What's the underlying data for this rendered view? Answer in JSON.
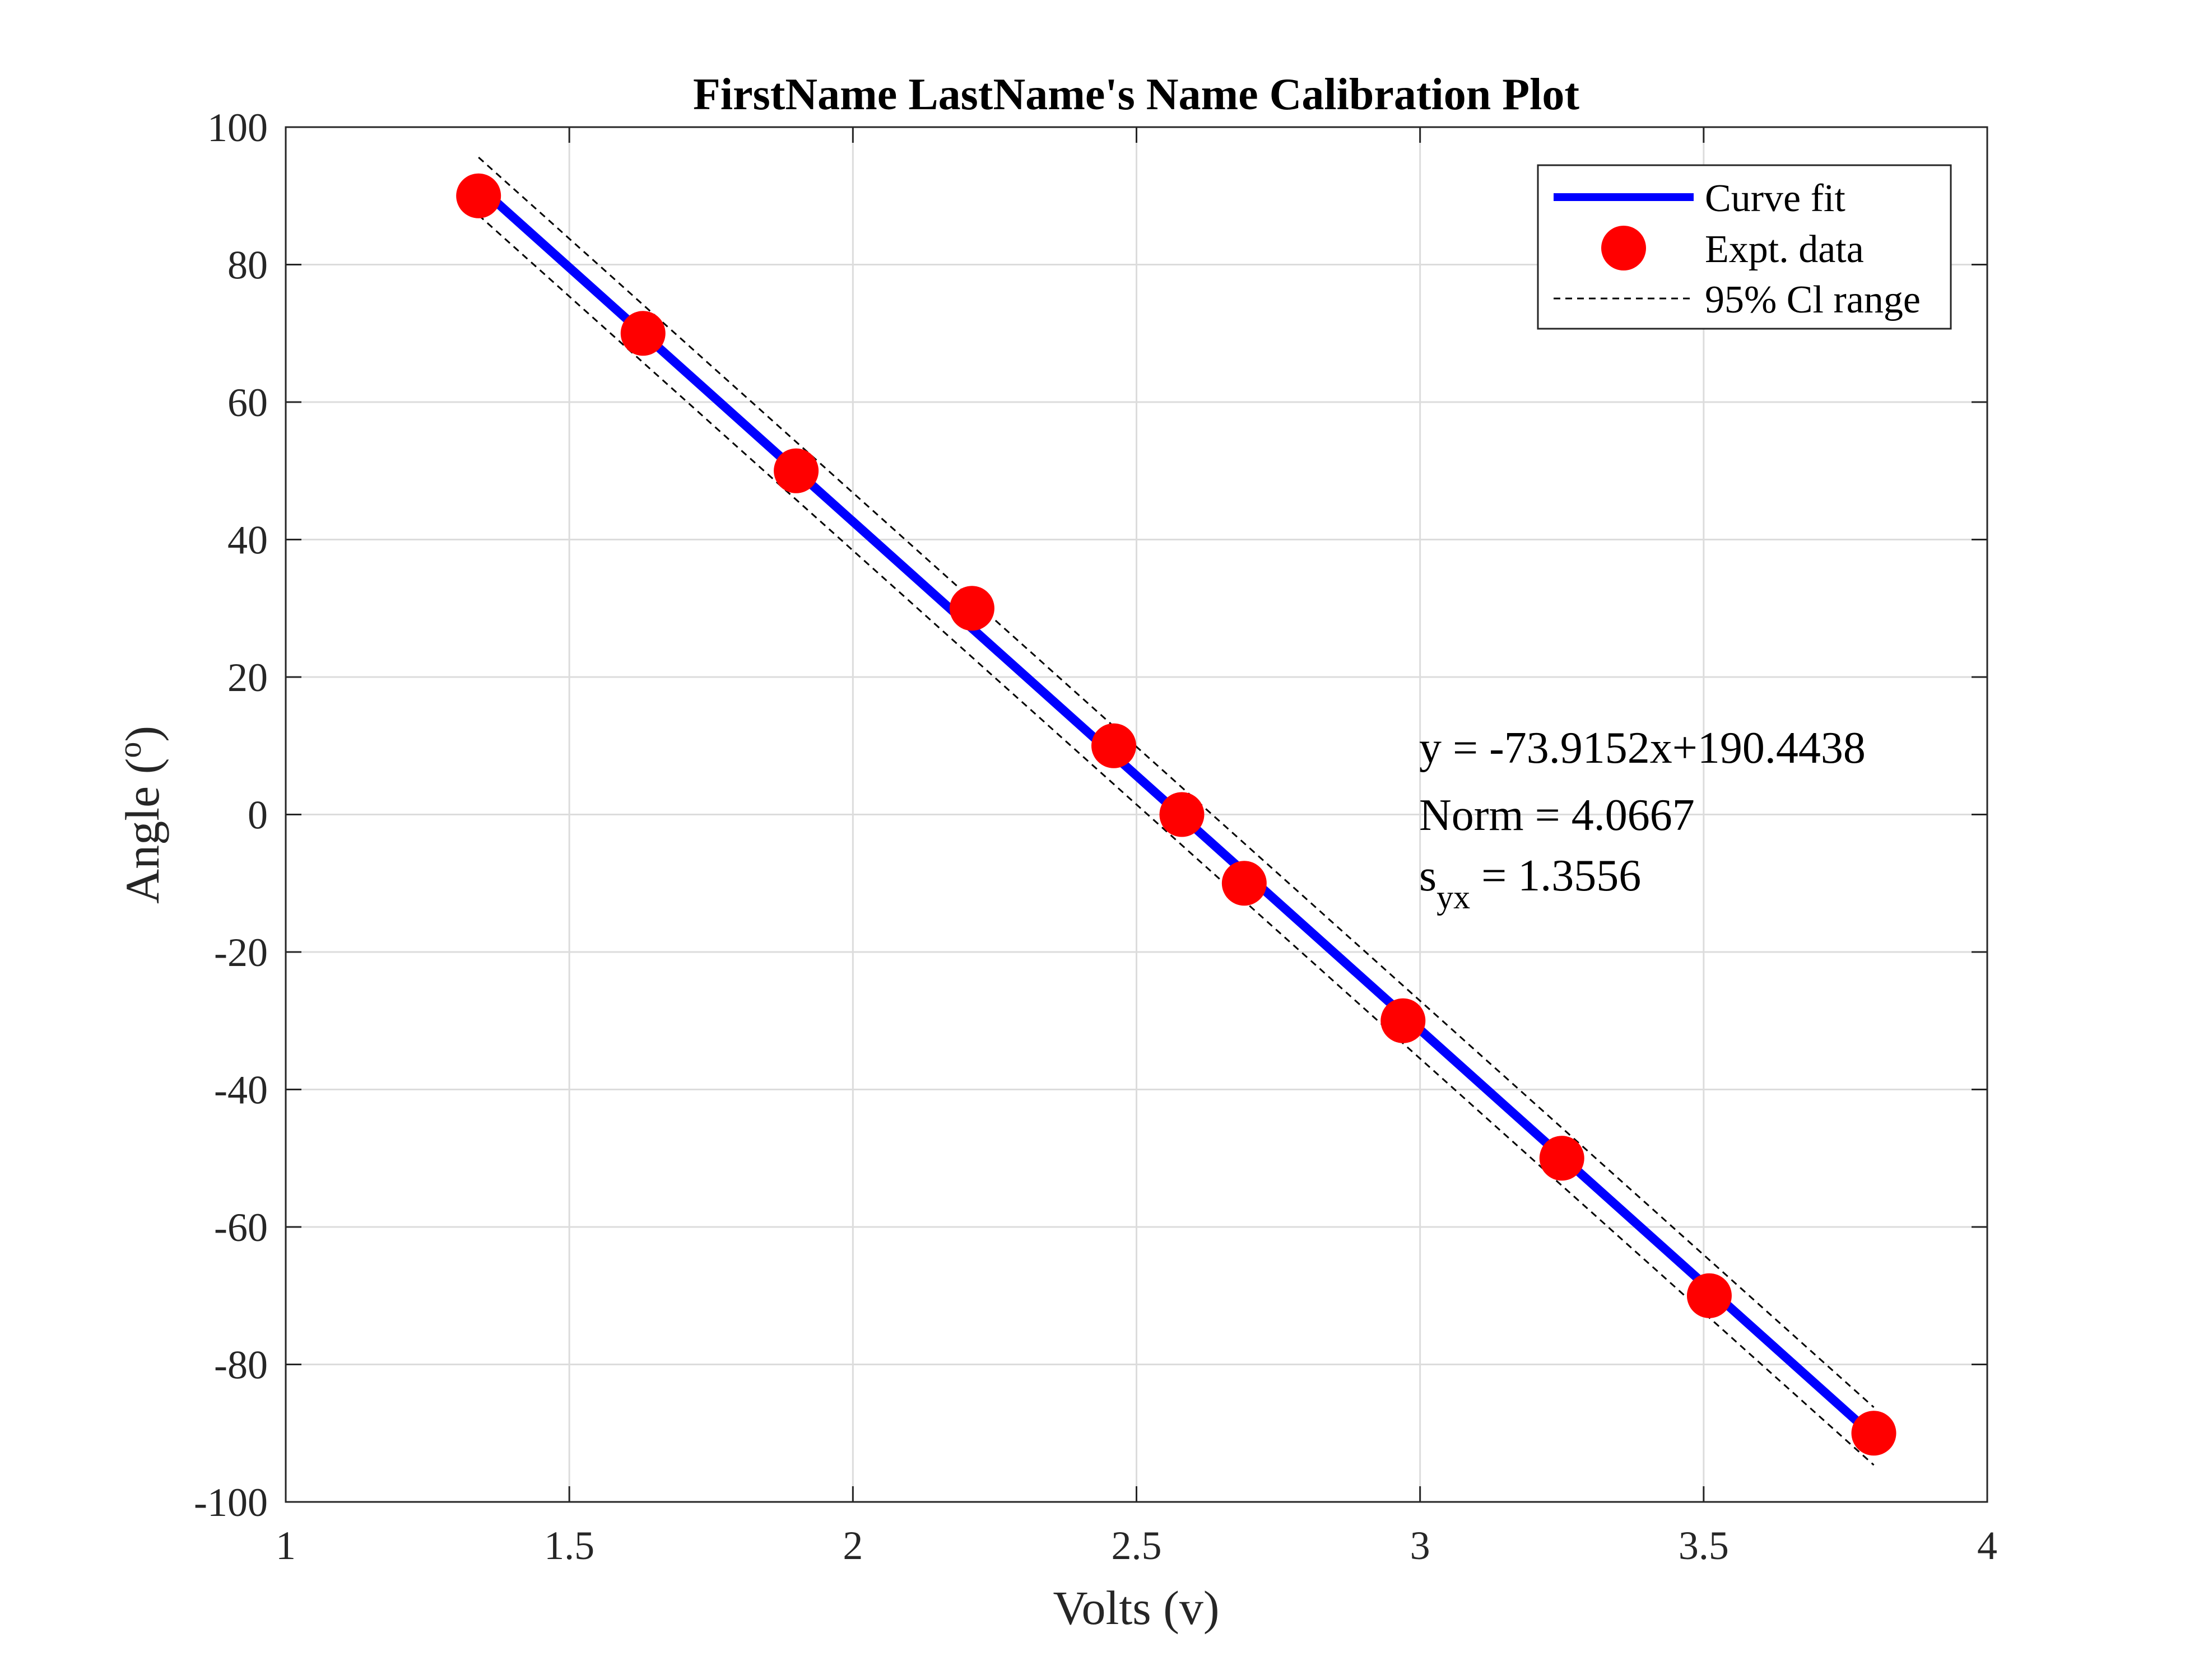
{
  "chart_data": {
    "type": "scatter",
    "title": "FirstName LastName's Name Calibration Plot",
    "xlabel": "Volts (v)",
    "ylabel_main": "Angle (",
    "ylabel_sup": "o",
    "ylabel_close": ")",
    "xlim": [
      1,
      4
    ],
    "ylim": [
      -100,
      100
    ],
    "x_ticks": [
      1,
      1.5,
      2,
      2.5,
      3,
      3.5,
      4
    ],
    "x_tick_labels": [
      "1",
      "1.5",
      "2",
      "2.5",
      "3",
      "3.5",
      "4"
    ],
    "y_ticks": [
      -100,
      -80,
      -60,
      -40,
      -20,
      0,
      20,
      40,
      60,
      80,
      100
    ],
    "y_tick_labels": [
      "-100",
      "-80",
      "-60",
      "-40",
      "-20",
      "0",
      "20",
      "40",
      "60",
      "80",
      "100"
    ],
    "grid": true,
    "legend_position": "top-right",
    "series": [
      {
        "name": "Expt. data",
        "kind": "markers",
        "color": "#ff0000",
        "x": [
          1.34,
          1.63,
          1.9,
          2.21,
          2.46,
          2.58,
          2.69,
          2.97,
          3.25,
          3.51,
          3.8
        ],
        "y": [
          90,
          70,
          50,
          30,
          10,
          0,
          -10,
          -30,
          -50,
          -70,
          -90
        ]
      },
      {
        "name": "Curve fit",
        "kind": "line",
        "color": "#0000ff",
        "slope": -73.9152,
        "intercept": 190.4438,
        "x_range": [
          1.34,
          3.8
        ]
      },
      {
        "name": "95% Cl range",
        "kind": "dashed-band",
        "color": "#000000",
        "half_width": 4.2
      }
    ],
    "legend_entries": [
      "Curve fit",
      "Expt. data",
      "95% Cl range"
    ],
    "annotation": {
      "equation": "y = -73.9152x+190.4438",
      "norm": "Norm = 4.0667",
      "syx_main": "s",
      "syx_sub": "yx",
      "syx_value": " = 1.3556"
    }
  }
}
